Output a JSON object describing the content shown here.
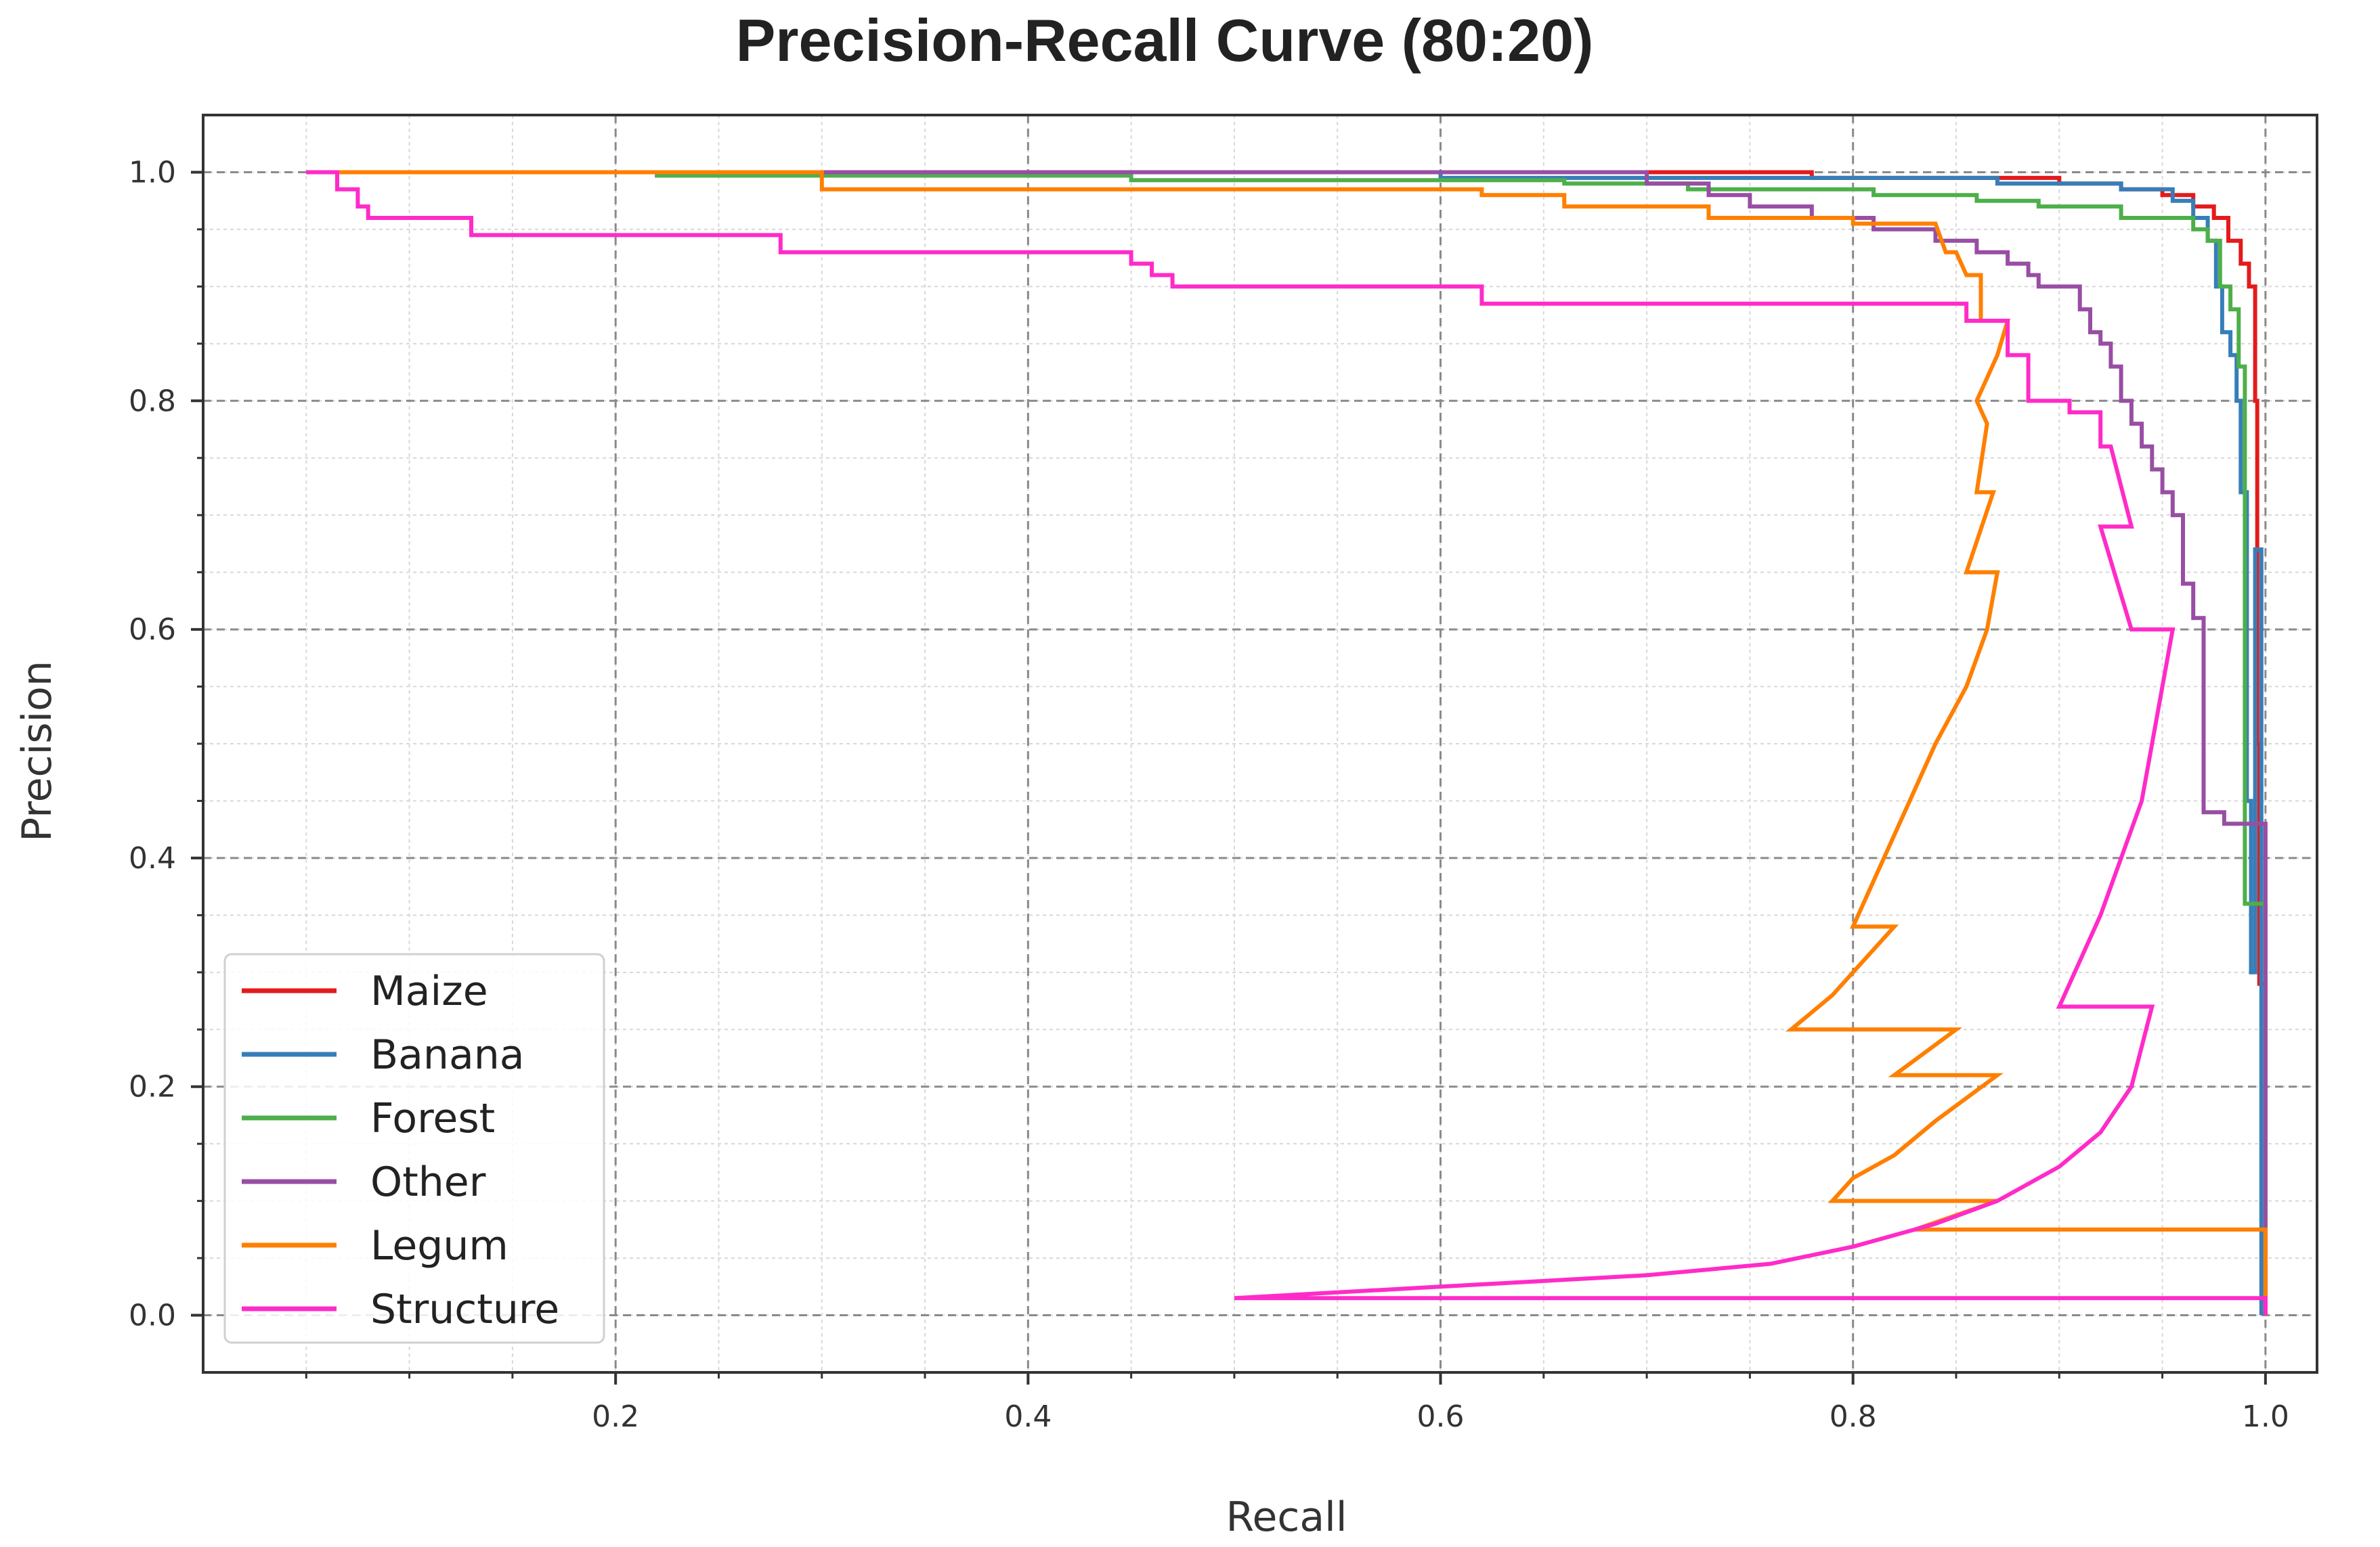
{
  "chart_data": {
    "type": "line",
    "title": "Precision-Recall Curve (80:20)",
    "xlabel": "Recall",
    "ylabel": "Precision",
    "xlim": [
      0.0,
      1.025
    ],
    "ylim": [
      -0.05,
      1.05
    ],
    "x_ticks": [
      0.2,
      0.4,
      0.6,
      0.8,
      1.0
    ],
    "x_tick_labels": [
      "0.2",
      "0.4",
      "0.6",
      "0.8",
      "1.0"
    ],
    "y_ticks": [
      0.0,
      0.2,
      0.4,
      0.6,
      0.8,
      1.0
    ],
    "y_tick_labels": [
      "0.0",
      "0.2",
      "0.4",
      "0.6",
      "0.8",
      "1.0"
    ],
    "grid": true,
    "legend_position": "lower-left",
    "series": [
      {
        "name": "Maize",
        "color": "#e41a1c",
        "points": [
          [
            0.05,
            1.0
          ],
          [
            0.78,
            1.0
          ],
          [
            0.78,
            0.995
          ],
          [
            0.9,
            0.995
          ],
          [
            0.9,
            0.99
          ],
          [
            0.93,
            0.99
          ],
          [
            0.93,
            0.985
          ],
          [
            0.95,
            0.985
          ],
          [
            0.95,
            0.98
          ],
          [
            0.965,
            0.98
          ],
          [
            0.965,
            0.97
          ],
          [
            0.975,
            0.97
          ],
          [
            0.975,
            0.96
          ],
          [
            0.982,
            0.96
          ],
          [
            0.982,
            0.94
          ],
          [
            0.988,
            0.94
          ],
          [
            0.988,
            0.92
          ],
          [
            0.992,
            0.92
          ],
          [
            0.992,
            0.9
          ],
          [
            0.995,
            0.9
          ],
          [
            0.995,
            0.8
          ],
          [
            0.996,
            0.8
          ],
          [
            0.996,
            0.5
          ],
          [
            0.997,
            0.5
          ],
          [
            0.997,
            0.29
          ],
          [
            1.0,
            0.29
          ],
          [
            1.0,
            0.0
          ]
        ]
      },
      {
        "name": "Banana",
        "color": "#377eb8",
        "points": [
          [
            0.05,
            1.0
          ],
          [
            0.6,
            1.0
          ],
          [
            0.6,
            0.995
          ],
          [
            0.87,
            0.995
          ],
          [
            0.87,
            0.99
          ],
          [
            0.93,
            0.99
          ],
          [
            0.93,
            0.985
          ],
          [
            0.955,
            0.985
          ],
          [
            0.955,
            0.975
          ],
          [
            0.965,
            0.975
          ],
          [
            0.965,
            0.96
          ],
          [
            0.972,
            0.96
          ],
          [
            0.972,
            0.94
          ],
          [
            0.976,
            0.94
          ],
          [
            0.976,
            0.9
          ],
          [
            0.979,
            0.9
          ],
          [
            0.979,
            0.86
          ],
          [
            0.983,
            0.86
          ],
          [
            0.983,
            0.84
          ],
          [
            0.986,
            0.84
          ],
          [
            0.986,
            0.8
          ],
          [
            0.988,
            0.8
          ],
          [
            0.988,
            0.72
          ],
          [
            0.991,
            0.72
          ],
          [
            0.991,
            0.45
          ],
          [
            0.993,
            0.45
          ],
          [
            0.993,
            0.3
          ],
          [
            0.995,
            0.3
          ],
          [
            0.995,
            0.67
          ],
          [
            0.998,
            0.67
          ],
          [
            0.998,
            0.0
          ]
        ]
      },
      {
        "name": "Forest",
        "color": "#4daf4a",
        "points": [
          [
            0.05,
            1.0
          ],
          [
            0.22,
            1.0
          ],
          [
            0.22,
            0.997
          ],
          [
            0.45,
            0.997
          ],
          [
            0.45,
            0.993
          ],
          [
            0.66,
            0.993
          ],
          [
            0.66,
            0.99
          ],
          [
            0.72,
            0.99
          ],
          [
            0.72,
            0.985
          ],
          [
            0.81,
            0.985
          ],
          [
            0.81,
            0.98
          ],
          [
            0.86,
            0.98
          ],
          [
            0.86,
            0.975
          ],
          [
            0.89,
            0.975
          ],
          [
            0.89,
            0.97
          ],
          [
            0.93,
            0.97
          ],
          [
            0.93,
            0.96
          ],
          [
            0.965,
            0.96
          ],
          [
            0.965,
            0.95
          ],
          [
            0.972,
            0.95
          ],
          [
            0.972,
            0.94
          ],
          [
            0.978,
            0.94
          ],
          [
            0.978,
            0.9
          ],
          [
            0.983,
            0.9
          ],
          [
            0.983,
            0.88
          ],
          [
            0.987,
            0.88
          ],
          [
            0.987,
            0.83
          ],
          [
            0.99,
            0.83
          ],
          [
            0.99,
            0.36
          ],
          [
            1.0,
            0.36
          ],
          [
            1.0,
            0.0
          ]
        ]
      },
      {
        "name": "Other",
        "color": "#984ea3",
        "points": [
          [
            0.05,
            1.0
          ],
          [
            0.7,
            1.0
          ],
          [
            0.7,
            0.99
          ],
          [
            0.73,
            0.99
          ],
          [
            0.73,
            0.98
          ],
          [
            0.75,
            0.98
          ],
          [
            0.75,
            0.97
          ],
          [
            0.78,
            0.97
          ],
          [
            0.78,
            0.96
          ],
          [
            0.81,
            0.96
          ],
          [
            0.81,
            0.95
          ],
          [
            0.84,
            0.95
          ],
          [
            0.84,
            0.94
          ],
          [
            0.86,
            0.94
          ],
          [
            0.86,
            0.93
          ],
          [
            0.875,
            0.93
          ],
          [
            0.875,
            0.92
          ],
          [
            0.885,
            0.92
          ],
          [
            0.885,
            0.91
          ],
          [
            0.89,
            0.91
          ],
          [
            0.89,
            0.9
          ],
          [
            0.91,
            0.9
          ],
          [
            0.91,
            0.88
          ],
          [
            0.915,
            0.88
          ],
          [
            0.915,
            0.86
          ],
          [
            0.92,
            0.86
          ],
          [
            0.92,
            0.85
          ],
          [
            0.925,
            0.85
          ],
          [
            0.925,
            0.83
          ],
          [
            0.93,
            0.83
          ],
          [
            0.93,
            0.8
          ],
          [
            0.935,
            0.8
          ],
          [
            0.935,
            0.78
          ],
          [
            0.94,
            0.78
          ],
          [
            0.94,
            0.76
          ],
          [
            0.945,
            0.76
          ],
          [
            0.945,
            0.74
          ],
          [
            0.95,
            0.74
          ],
          [
            0.95,
            0.72
          ],
          [
            0.955,
            0.72
          ],
          [
            0.955,
            0.7
          ],
          [
            0.96,
            0.7
          ],
          [
            0.96,
            0.64
          ],
          [
            0.965,
            0.64
          ],
          [
            0.965,
            0.61
          ],
          [
            0.97,
            0.61
          ],
          [
            0.97,
            0.44
          ],
          [
            0.98,
            0.44
          ],
          [
            0.98,
            0.43
          ],
          [
            1.0,
            0.43
          ],
          [
            1.0,
            0.0
          ]
        ]
      },
      {
        "name": "Legum",
        "color": "#ff7f00",
        "points": [
          [
            0.05,
            1.0
          ],
          [
            0.3,
            1.0
          ],
          [
            0.3,
            0.985
          ],
          [
            0.62,
            0.985
          ],
          [
            0.62,
            0.98
          ],
          [
            0.66,
            0.98
          ],
          [
            0.66,
            0.97
          ],
          [
            0.73,
            0.97
          ],
          [
            0.73,
            0.96
          ],
          [
            0.8,
            0.96
          ],
          [
            0.8,
            0.955
          ],
          [
            0.84,
            0.955
          ],
          [
            0.845,
            0.93
          ],
          [
            0.85,
            0.93
          ],
          [
            0.855,
            0.91
          ],
          [
            0.862,
            0.91
          ],
          [
            0.862,
            0.87
          ],
          [
            0.87,
            0.87
          ],
          [
            0.875,
            0.87
          ],
          [
            0.87,
            0.84
          ],
          [
            0.86,
            0.8
          ],
          [
            0.865,
            0.78
          ],
          [
            0.86,
            0.72
          ],
          [
            0.868,
            0.72
          ],
          [
            0.855,
            0.65
          ],
          [
            0.87,
            0.65
          ],
          [
            0.865,
            0.6
          ],
          [
            0.855,
            0.55
          ],
          [
            0.84,
            0.5
          ],
          [
            0.82,
            0.42
          ],
          [
            0.81,
            0.38
          ],
          [
            0.8,
            0.34
          ],
          [
            0.82,
            0.34
          ],
          [
            0.8,
            0.3
          ],
          [
            0.79,
            0.28
          ],
          [
            0.77,
            0.25
          ],
          [
            0.85,
            0.25
          ],
          [
            0.82,
            0.21
          ],
          [
            0.87,
            0.21
          ],
          [
            0.84,
            0.17
          ],
          [
            0.82,
            0.14
          ],
          [
            0.8,
            0.12
          ],
          [
            0.79,
            0.1
          ],
          [
            0.87,
            0.1
          ],
          [
            0.83,
            0.075
          ],
          [
            1.0,
            0.075
          ],
          [
            1.0,
            0.0
          ]
        ]
      },
      {
        "name": "Structure",
        "color": "#ff2bc8",
        "points": [
          [
            0.05,
            1.0
          ],
          [
            0.065,
            1.0
          ],
          [
            0.065,
            0.985
          ],
          [
            0.075,
            0.985
          ],
          [
            0.075,
            0.97
          ],
          [
            0.08,
            0.97
          ],
          [
            0.08,
            0.96
          ],
          [
            0.13,
            0.96
          ],
          [
            0.13,
            0.945
          ],
          [
            0.28,
            0.945
          ],
          [
            0.28,
            0.93
          ],
          [
            0.45,
            0.93
          ],
          [
            0.45,
            0.92
          ],
          [
            0.46,
            0.92
          ],
          [
            0.46,
            0.91
          ],
          [
            0.47,
            0.91
          ],
          [
            0.47,
            0.9
          ],
          [
            0.62,
            0.9
          ],
          [
            0.62,
            0.885
          ],
          [
            0.83,
            0.885
          ],
          [
            0.855,
            0.885
          ],
          [
            0.855,
            0.87
          ],
          [
            0.875,
            0.87
          ],
          [
            0.875,
            0.84
          ],
          [
            0.885,
            0.84
          ],
          [
            0.885,
            0.8
          ],
          [
            0.905,
            0.8
          ],
          [
            0.905,
            0.79
          ],
          [
            0.92,
            0.79
          ],
          [
            0.92,
            0.76
          ],
          [
            0.925,
            0.76
          ],
          [
            0.935,
            0.69
          ],
          [
            0.92,
            0.69
          ],
          [
            0.935,
            0.6
          ],
          [
            0.955,
            0.6
          ],
          [
            0.95,
            0.55
          ],
          [
            0.94,
            0.45
          ],
          [
            0.92,
            0.35
          ],
          [
            0.9,
            0.27
          ],
          [
            0.945,
            0.27
          ],
          [
            0.935,
            0.2
          ],
          [
            0.92,
            0.16
          ],
          [
            0.9,
            0.13
          ],
          [
            0.87,
            0.1
          ],
          [
            0.84,
            0.08
          ],
          [
            0.8,
            0.06
          ],
          [
            0.76,
            0.045
          ],
          [
            0.7,
            0.035
          ],
          [
            0.6,
            0.025
          ],
          [
            0.5,
            0.015
          ],
          [
            1.0,
            0.015
          ],
          [
            1.0,
            0.0
          ]
        ]
      }
    ]
  }
}
